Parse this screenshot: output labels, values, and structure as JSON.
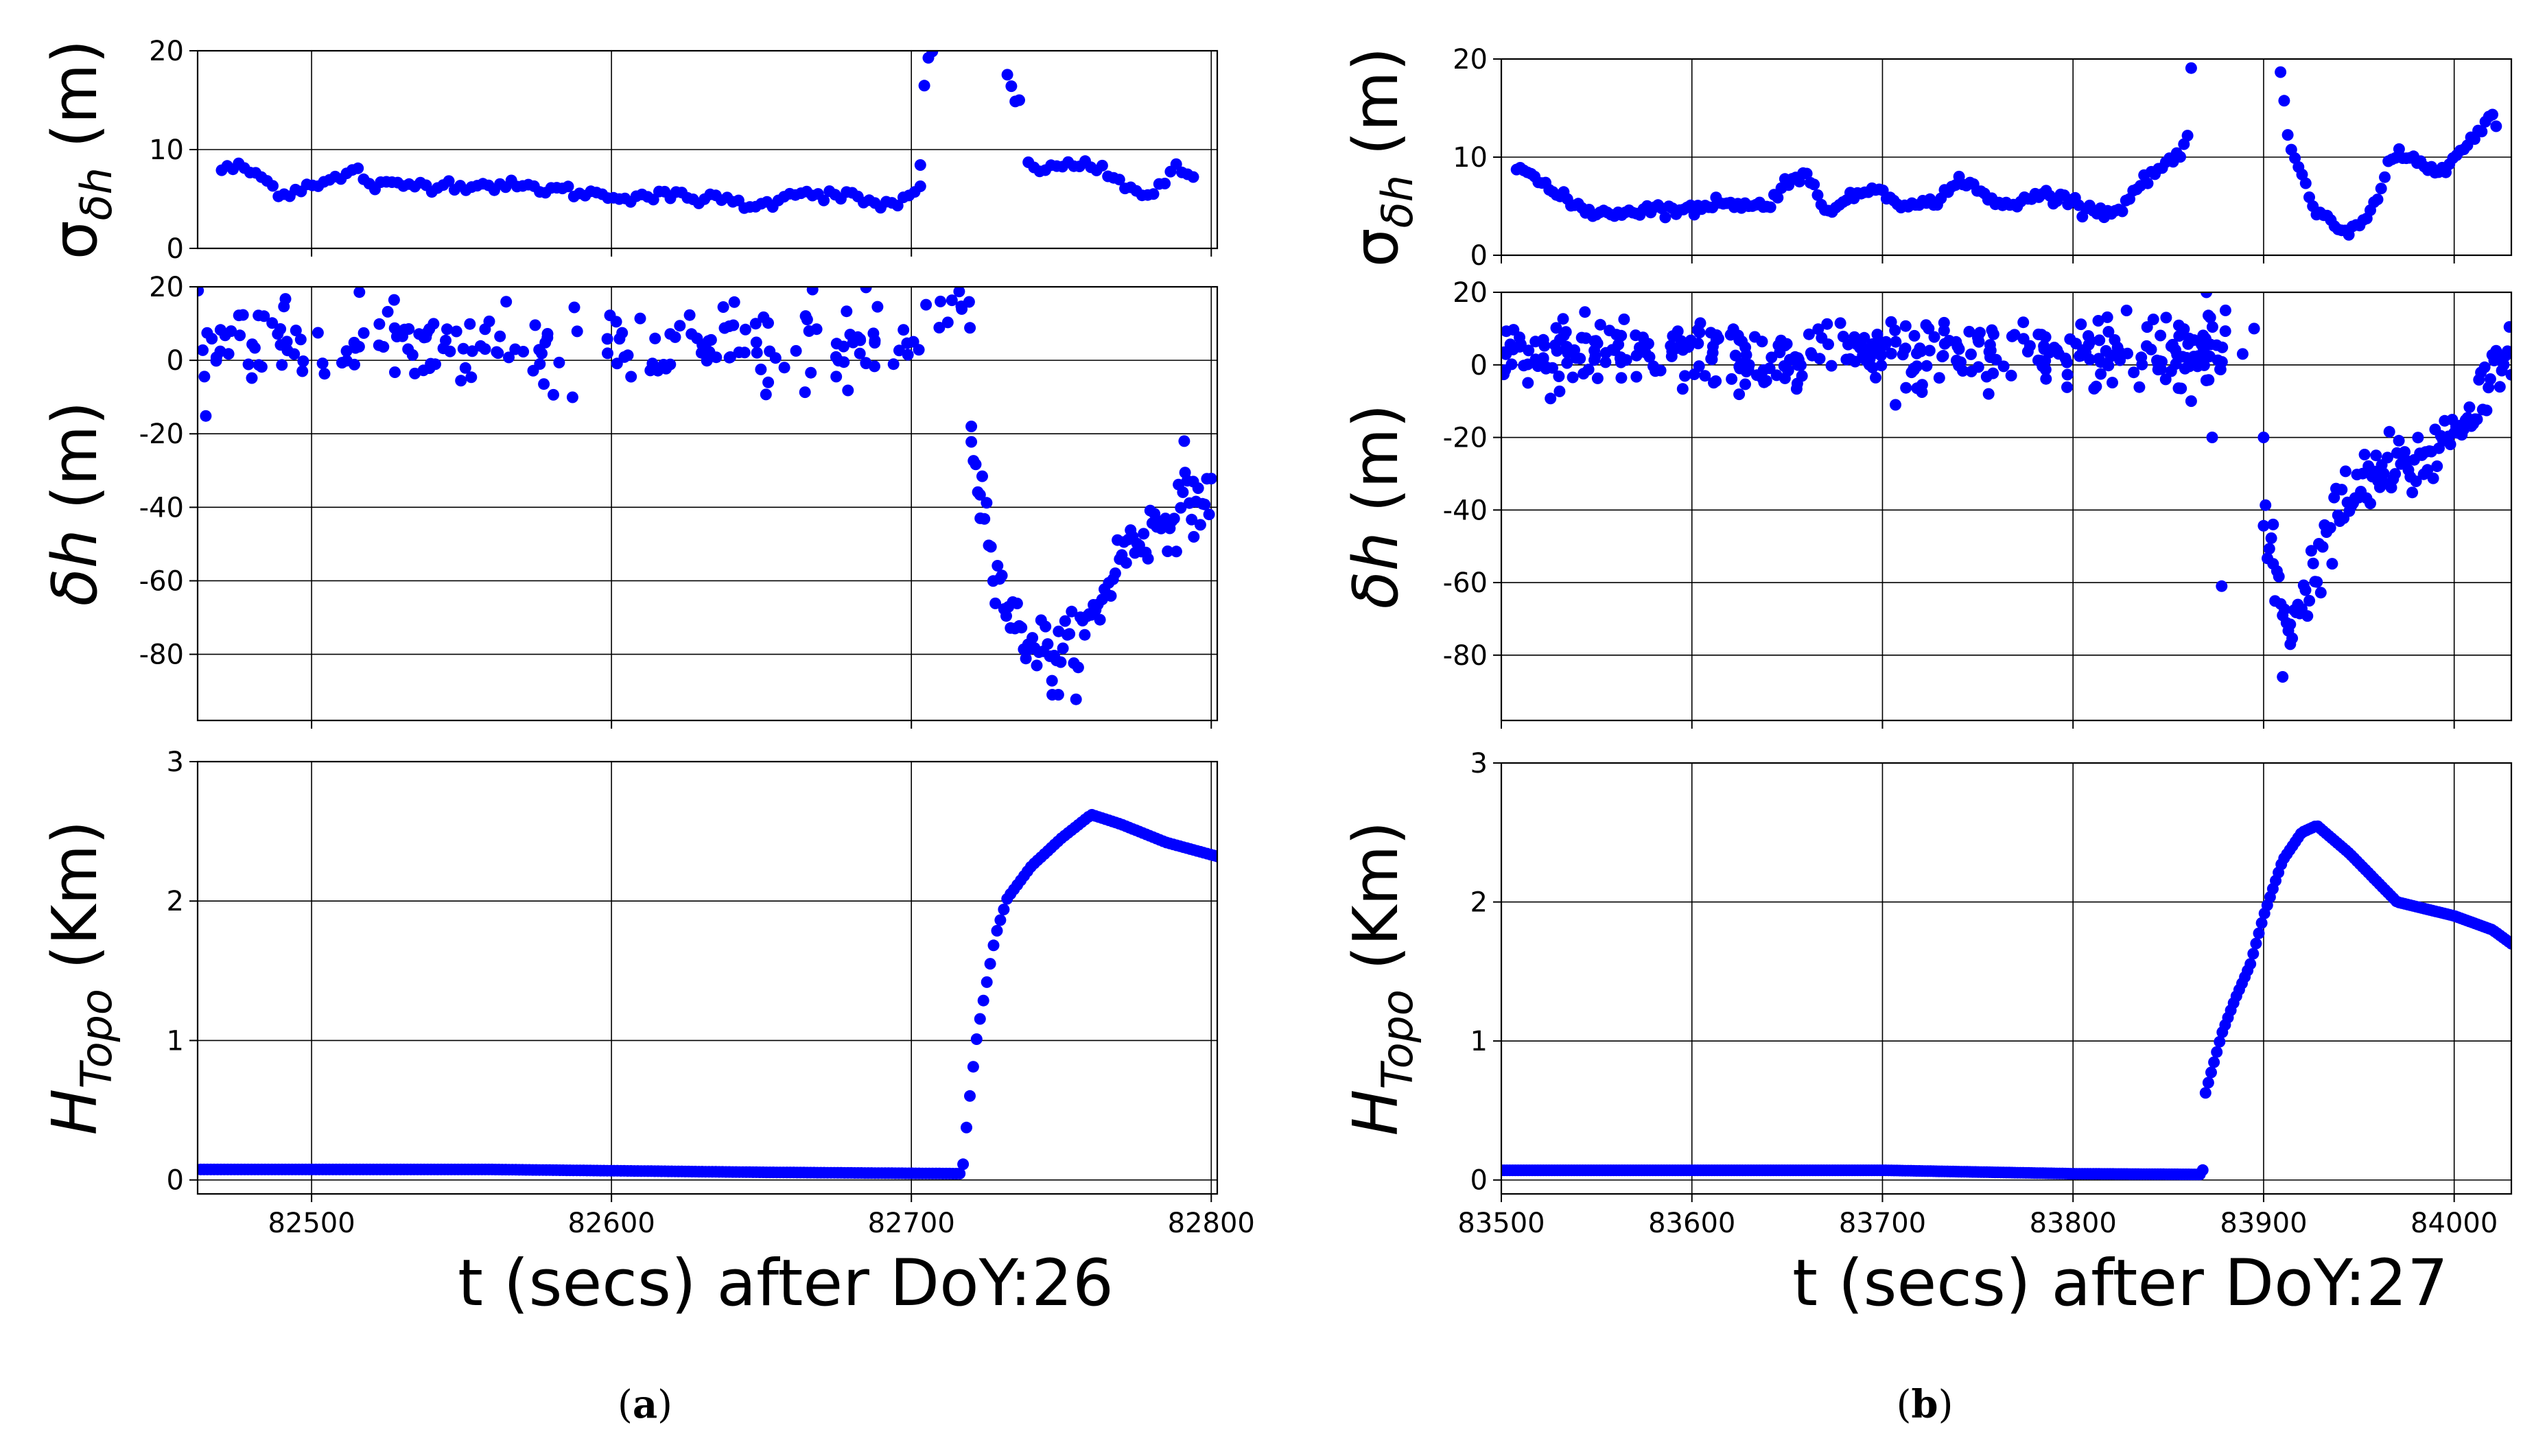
{
  "figure": {
    "caption_a": "a",
    "caption_b": "b"
  },
  "chart_data": [
    {
      "panel": "a",
      "type": "scatter",
      "xlabel": "t (secs) after DoY:26",
      "xlim": [
        82462,
        82802
      ],
      "xticks": [
        82500,
        82600,
        82700,
        82800
      ],
      "marker_color": "#0000ff",
      "subplots": [
        {
          "id": "sigma",
          "ylabel": "σδh (m)",
          "ylim": [
            0,
            20
          ],
          "yticks": [
            0,
            10,
            20
          ],
          "segments": [
            [
              [
                82470,
                8
              ],
              [
                82476,
                8.2
              ],
              [
                82482,
                7.5
              ],
              [
                82488,
                6
              ],
              [
                82492,
                5.5
              ],
              [
                82500,
                6.6
              ],
              [
                82510,
                7.1
              ],
              [
                82515,
                8.0
              ],
              [
                82520,
                6.3
              ],
              [
                82540,
                6.5
              ],
              [
                82560,
                6.4
              ],
              [
                82580,
                6.0
              ],
              [
                82600,
                5.3
              ],
              [
                82620,
                5.3
              ],
              [
                82640,
                4.8
              ],
              [
                82650,
                4.2
              ],
              [
                82660,
                5.8
              ],
              [
                82680,
                5.2
              ],
              [
                82690,
                4.3
              ],
              [
                82700,
                5.2
              ],
              [
                82703,
                5.9
              ]
            ],
            [
              [
                82703,
                8
              ],
              [
                82704,
                15.5
              ],
              [
                82705,
                18.5
              ],
              [
                82707,
                20
              ]
            ],
            [
              [
                82732,
                17.5
              ],
              [
                82733,
                17.0
              ],
              [
                82734,
                15.0
              ],
              [
                82736,
                14.5
              ]
            ],
            [
              [
                82739,
                9
              ],
              [
                82745,
                7.6
              ],
              [
                82750,
                8.5
              ],
              [
                82760,
                8.5
              ],
              [
                82765,
                7.3
              ],
              [
                82780,
                5.3
              ],
              [
                82786,
                7.2
              ],
              [
                82789,
                8.1
              ],
              [
                82794,
                7.1
              ]
            ]
          ],
          "noise": 0.3
        },
        {
          "id": "dh",
          "ylabel": "δh (m)",
          "ylim": [
            -98,
            20
          ],
          "yticks": [
            -80,
            -60,
            -40,
            -20,
            0,
            20
          ],
          "clusters": [
            {
              "x": [
                82462,
                82703
              ],
              "mean": 4,
              "spread": 10,
              "n": 200
            },
            {
              "x": [
                82703,
                82720
              ],
              "mean": 13,
              "spread": 6,
              "n": 10
            }
          ],
          "curve": {
            "points": [
              [
                82720,
                -20
              ],
              [
                82724,
                -38
              ],
              [
                82730,
                -62
              ],
              [
                82735,
                -73
              ],
              [
                82745,
                -79
              ],
              [
                82755,
                -78
              ],
              [
                82762,
                -68
              ],
              [
                82770,
                -52
              ],
              [
                82780,
                -46
              ],
              [
                82790,
                -40
              ],
              [
                82800,
                -38
              ]
            ],
            "noise": 7,
            "n": 110
          },
          "outliers": [
            [
              82720,
              -18
            ],
            [
              82723,
              -43
            ],
            [
              82749,
              -91
            ],
            [
              82747,
              -91
            ],
            [
              82791,
              -22
            ],
            [
              82794,
              -33
            ]
          ]
        },
        {
          "id": "htopo",
          "ylabel": "HTopo (Km)",
          "ylim": [
            -0.1,
            3
          ],
          "yticks": [
            0,
            1,
            2,
            3
          ],
          "curve": {
            "points": [
              [
                82463,
                0.075
              ],
              [
                82560,
                0.075
              ],
              [
                82650,
                0.055
              ],
              [
                82716,
                0.045
              ],
              [
                82717,
                0.05
              ],
              [
                82718,
                0.3
              ],
              [
                82720,
                0.7
              ],
              [
                82722,
                1.05
              ],
              [
                82725,
                1.4
              ],
              [
                82728,
                1.75
              ],
              [
                82732,
                2.02
              ],
              [
                82740,
                2.25
              ],
              [
                82750,
                2.45
              ],
              [
                82760,
                2.62
              ],
              [
                82770,
                2.55
              ],
              [
                82785,
                2.42
              ],
              [
                82802,
                2.32
              ]
            ],
            "n": 300
          }
        }
      ]
    },
    {
      "panel": "b",
      "type": "scatter",
      "xlabel": "t (secs) after DoY:27",
      "xlim": [
        83500,
        84030
      ],
      "xticks": [
        83500,
        83600,
        83700,
        83800,
        83900,
        84000
      ],
      "marker_color": "#0000ff",
      "subplots": [
        {
          "id": "sigma",
          "ylabel": "σδh (m)",
          "ylim": [
            0,
            20
          ],
          "yticks": [
            0,
            10,
            20
          ],
          "segments": [
            [
              [
                83508,
                9.5
              ],
              [
                83520,
                7.5
              ],
              [
                83530,
                6
              ],
              [
                83545,
                4.5
              ],
              [
                83560,
                4.3
              ],
              [
                83580,
                4.8
              ],
              [
                83600,
                4.5
              ],
              [
                83615,
                5.6
              ],
              [
                83630,
                5.0
              ],
              [
                83640,
                5.0
              ],
              [
                83650,
                7.8
              ],
              [
                83660,
                8.0
              ],
              [
                83665,
                6.5
              ],
              [
                83670,
                4.8
              ],
              [
                83680,
                5.3
              ],
              [
                83690,
                6.5
              ],
              [
                83695,
                7.0
              ],
              [
                83705,
                6.0
              ],
              [
                83715,
                4.9
              ],
              [
                83725,
                5.3
              ],
              [
                83735,
                6.5
              ],
              [
                83740,
                7.8
              ],
              [
                83748,
                7.2
              ],
              [
                83755,
                5.5
              ],
              [
                83770,
                5.0
              ],
              [
                83780,
                6.3
              ],
              [
                83795,
                5.8
              ],
              [
                83810,
                4.8
              ],
              [
                83820,
                4.2
              ],
              [
                83825,
                5.0
              ],
              [
                83840,
                8.0
              ],
              [
                83850,
                9.5
              ],
              [
                83858,
                10.5
              ],
              [
                83860,
                12.0
              ],
              [
                83862,
                19
              ]
            ],
            [
              [
                83907,
                20
              ],
              [
                83910,
                17.5
              ],
              [
                83913,
                11.5
              ],
              [
                83918,
                9.0
              ],
              [
                83922,
                7.0
              ],
              [
                83926,
                4.5
              ],
              [
                83935,
                3.5
              ],
              [
                83945,
                2.2
              ],
              [
                83955,
                4.0
              ],
              [
                83960,
                6.0
              ],
              [
                83968,
                10.5
              ],
              [
                83985,
                9.5
              ],
              [
                83990,
                8.0
              ],
              [
                84000,
                10.0
              ],
              [
                84010,
                11.5
              ],
              [
                84020,
                14.5
              ],
              [
                84022,
                13.0
              ]
            ]
          ],
          "noise": 0.3
        },
        {
          "id": "dh",
          "ylabel": "δh (m)",
          "ylim": [
            -98,
            20
          ],
          "yticks": [
            -80,
            -60,
            -40,
            -20,
            0,
            20
          ],
          "clusters": [
            {
              "x": [
                83500,
                83880
              ],
              "mean": 3,
              "spread": 9,
              "n": 380
            }
          ],
          "curve": {
            "points": [
              [
                83900,
                -40
              ],
              [
                83905,
                -58
              ],
              [
                83912,
                -70
              ],
              [
                83920,
                -66
              ],
              [
                83930,
                -52
              ],
              [
                83940,
                -40
              ],
              [
                83960,
                -30
              ],
              [
                83980,
                -28
              ],
              [
                84000,
                -18
              ],
              [
                84015,
                -8
              ],
              [
                84030,
                8
              ]
            ],
            "noise": 8,
            "n": 130
          },
          "outliers": [
            [
              83878,
              -61
            ],
            [
              83900,
              -20
            ],
            [
              83905,
              -44
            ],
            [
              83910,
              -86
            ],
            [
              83914,
              -77
            ],
            [
              83870,
              20
            ],
            [
              83880,
              15
            ],
            [
              83895,
              10
            ],
            [
              83889,
              3
            ],
            [
              83873,
              -20
            ],
            [
              83862,
              -10
            ]
          ]
        },
        {
          "id": "htopo",
          "ylabel": "HTopo (Km)",
          "ylim": [
            -0.1,
            3
          ],
          "yticks": [
            0,
            1,
            2,
            3
          ],
          "curve": {
            "points": [
              [
                83500,
                0.07
              ],
              [
                83700,
                0.07
              ],
              [
                83800,
                0.045
              ],
              [
                83868,
                0.04
              ],
              [
                83869,
                0.6
              ],
              [
                83873,
                0.8
              ],
              [
                83878,
                1.05
              ],
              [
                83885,
                1.3
              ],
              [
                83893,
                1.55
              ],
              [
                83900,
                1.9
              ],
              [
                83910,
                2.3
              ],
              [
                83920,
                2.5
              ],
              [
                83928,
                2.55
              ],
              [
                83945,
                2.35
              ],
              [
                83970,
                2.0
              ],
              [
                84000,
                1.9
              ],
              [
                84020,
                1.8
              ],
              [
                84030,
                1.7
              ]
            ],
            "n": 360
          }
        }
      ]
    }
  ]
}
